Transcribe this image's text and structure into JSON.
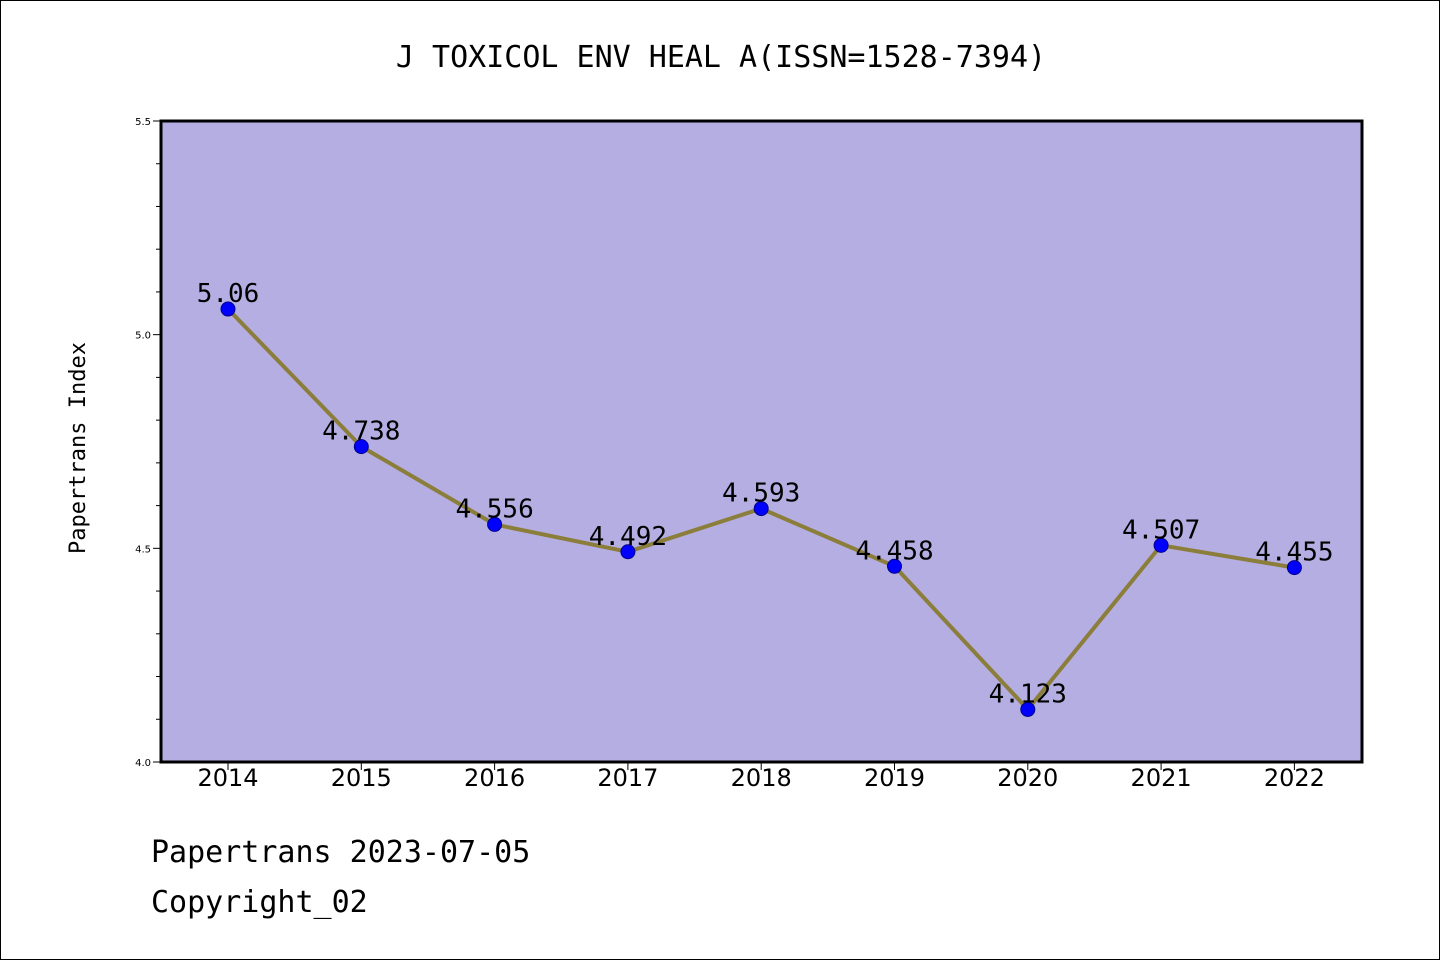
{
  "chart_data": {
    "type": "line",
    "title": "J TOXICOL ENV HEAL A(ISSN=1528-7394)",
    "xlabel": "",
    "ylabel": "Papertrans Index",
    "categories": [
      "2014",
      "2015",
      "2016",
      "2017",
      "2018",
      "2019",
      "2020",
      "2021",
      "2022"
    ],
    "series": [
      {
        "values": [
          5.06,
          4.738,
          4.556,
          4.492,
          4.593,
          4.458,
          4.123,
          4.507,
          4.455
        ],
        "labels": [
          "5.06",
          "4.738",
          "4.556",
          "4.492",
          "4.593",
          "4.458",
          "4.123",
          "4.507",
          "4.455"
        ]
      }
    ],
    "ylim": [
      4.0,
      5.5
    ],
    "yticks": [
      "4.0",
      "4.5",
      "5.0",
      "5.5"
    ],
    "grid": false,
    "colors": {
      "plot_background": "#b4aee2",
      "line": "#8b7d3a",
      "marker": "#0000ff"
    }
  },
  "footer": {
    "date_line": "Papertrans 2023-07-05",
    "copyright_line": "Copyright_02"
  }
}
